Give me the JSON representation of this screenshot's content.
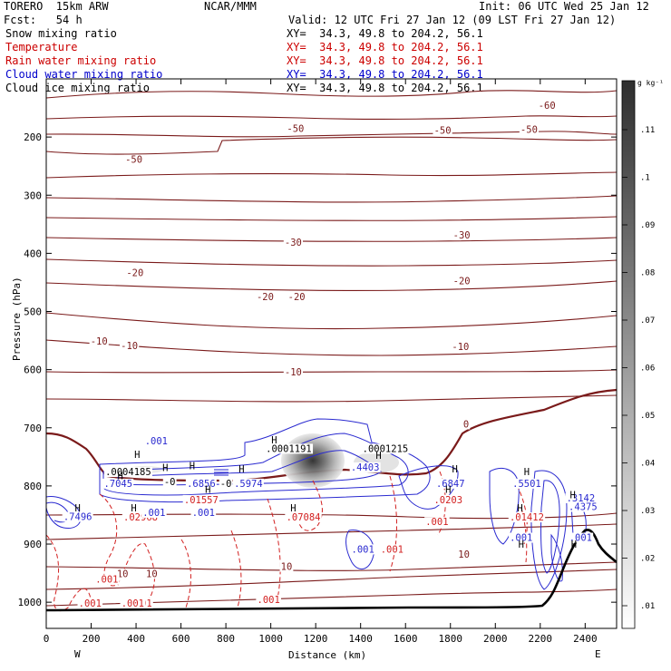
{
  "header": {
    "model": "TORERO  15km ARW",
    "center": "NCAR/MMM",
    "init": "Init: 06 UTC Wed 25 Jan 12",
    "fcst": "Fcst:   54 h",
    "valid": "Valid: 12 UTC Fri 27 Jan 12 (09 LST Fri 27 Jan 12)"
  },
  "fields": [
    {
      "label": "Snow mixing ratio",
      "xy": "XY=  34.3, 49.8 to 204.2, 56.1",
      "color": "#000000"
    },
    {
      "label": "Temperature",
      "xy": "XY=  34.3, 49.8 to 204.2, 56.1",
      "color": "#cc0000"
    },
    {
      "label": "Rain water mixing ratio",
      "xy": "XY=  34.3, 49.8 to 204.2, 56.1",
      "color": "#cc0000"
    },
    {
      "label": "Cloud water mixing ratio",
      "xy": "XY=  34.3, 49.8 to 204.2, 56.1",
      "color": "#0000cc"
    },
    {
      "label": "Cloud ice mixing ratio",
      "xy": "XY=  34.3, 49.8 to 204.2, 56.1",
      "color": "#000000"
    }
  ],
  "colors": {
    "temperature": "#7a1a1a",
    "zero_isotherm": "#7a1a1a",
    "rain": "#d22020",
    "cloud_water": "#2a2ad0",
    "terrain": "#000000",
    "snow_shading": "#444444"
  },
  "chart_data": {
    "type": "cross-section",
    "xlabel": "Distance (km)",
    "ylabel": "Pressure (hPa)",
    "x_ticks": [
      0,
      200,
      400,
      600,
      800,
      1000,
      1200,
      1400,
      1600,
      1800,
      2000,
      2200,
      2400
    ],
    "y_ticks": [
      200,
      300,
      400,
      500,
      600,
      700,
      800,
      900,
      1000
    ],
    "xlim": [
      0,
      2540
    ],
    "ylim": [
      1045,
      100
    ],
    "endpoints": {
      "left": "W",
      "right": "E"
    },
    "colorbar": {
      "unit": "g kg⁻¹",
      "ticks": [
        ".01",
        ".02",
        ".03",
        ".04",
        ".05",
        ".06",
        ".07",
        ".08",
        ".09",
        ".1",
        ".11"
      ]
    },
    "temperature_labels": [
      {
        "text": "-60",
        "x": 2230,
        "p": 150
      },
      {
        "text": "-50",
        "x": 1110,
        "p": 190
      },
      {
        "text": "-50",
        "x": 1765,
        "p": 193
      },
      {
        "text": "-50",
        "x": 2150,
        "p": 191
      },
      {
        "text": "-50",
        "x": 390,
        "p": 243
      },
      {
        "text": "-30",
        "x": 1100,
        "p": 385
      },
      {
        "text": "-30",
        "x": 1850,
        "p": 373
      },
      {
        "text": "-20",
        "x": 395,
        "p": 438
      },
      {
        "text": "-20",
        "x": 975,
        "p": 479
      },
      {
        "text": "-20",
        "x": 1115,
        "p": 479
      },
      {
        "text": "-20",
        "x": 1850,
        "p": 452
      },
      {
        "text": "-10",
        "x": 235,
        "p": 555
      },
      {
        "text": "-10",
        "x": 370,
        "p": 563
      },
      {
        "text": "-10",
        "x": 1100,
        "p": 608
      },
      {
        "text": "-10",
        "x": 1845,
        "p": 565
      },
      {
        "text": "0",
        "x": 1870,
        "p": 698
      },
      {
        "text": "10",
        "x": 340,
        "p": 955
      },
      {
        "text": "10",
        "x": 470,
        "p": 955
      },
      {
        "text": "10",
        "x": 1070,
        "p": 943
      },
      {
        "text": "10",
        "x": 1860,
        "p": 922
      }
    ],
    "rain_labels": [
      {
        "text": ".01557",
        "x": 690,
        "p": 828
      },
      {
        "text": ".02968",
        "x": 420,
        "p": 858
      },
      {
        "text": ".07084",
        "x": 1145,
        "p": 858
      },
      {
        "text": ".0203",
        "x": 1790,
        "p": 828
      },
      {
        "text": ".01412",
        "x": 2140,
        "p": 858
      },
      {
        "text": ".001",
        "x": 1740,
        "p": 866
      },
      {
        "text": ".001",
        "x": 1540,
        "p": 913
      },
      {
        "text": ".001",
        "x": 270,
        "p": 965
      },
      {
        "text": ".001",
        "x": 195,
        "p": 1006
      },
      {
        "text": ".001",
        "x": 420,
        "p": 1006
      },
      {
        "text": ".001",
        "x": 990,
        "p": 1000
      },
      {
        "text": ".001",
        "x": 385,
        "p": 1006
      }
    ],
    "cloud_labels": [
      {
        "text": ".001",
        "x": 490,
        "p": 727
      },
      {
        "text": ".001",
        "x": 1410,
        "p": 913
      },
      {
        "text": ".001",
        "x": 480,
        "p": 850
      },
      {
        "text": ".001",
        "x": 700,
        "p": 850
      },
      {
        "text": ".7496",
        "x": 140,
        "p": 857
      },
      {
        "text": ".7045",
        "x": 320,
        "p": 800
      },
      {
        "text": ".6856",
        "x": 690,
        "p": 800
      },
      {
        "text": ".5974",
        "x": 900,
        "p": 800
      },
      {
        "text": ".4403",
        "x": 1420,
        "p": 772
      },
      {
        "text": ".6847",
        "x": 1800,
        "p": 800
      },
      {
        "text": ".5501",
        "x": 2140,
        "p": 800
      },
      {
        "text": ".3142",
        "x": 2380,
        "p": 825
      },
      {
        "text": ".4375",
        "x": 2390,
        "p": 840
      },
      {
        "text": ".001",
        "x": 2115,
        "p": 893
      },
      {
        "text": ".001",
        "x": 2380,
        "p": 893
      }
    ],
    "h_labels": [
      {
        "text": "H",
        "x": 405,
        "p": 750
      },
      {
        "text": "H",
        "x": 1015,
        "p": 725
      },
      {
        "text": "H",
        "x": 1480,
        "p": 752
      },
      {
        "text": "H",
        "x": 140,
        "p": 842
      },
      {
        "text": "H",
        "x": 330,
        "p": 787
      },
      {
        "text": "H",
        "x": 530,
        "p": 773
      },
      {
        "text": "H",
        "x": 650,
        "p": 770
      },
      {
        "text": "H",
        "x": 870,
        "p": 775
      },
      {
        "text": "H",
        "x": 1820,
        "p": 775
      },
      {
        "text": "H",
        "x": 2140,
        "p": 780
      },
      {
        "text": "H",
        "x": 2345,
        "p": 820
      },
      {
        "text": "H",
        "x": 390,
        "p": 842
      },
      {
        "text": "H",
        "x": 720,
        "p": 810
      },
      {
        "text": "H",
        "x": 1100,
        "p": 842
      },
      {
        "text": "H",
        "x": 1790,
        "p": 810
      },
      {
        "text": "H",
        "x": 2110,
        "p": 842
      },
      {
        "text": "H",
        "x": 2350,
        "p": 905
      },
      {
        "text": "H",
        "x": 2115,
        "p": 905
      }
    ],
    "snow_labels": [
      {
        "text": ".0001191",
        "x": 1080,
        "p": 740
      },
      {
        "text": ".0001215",
        "x": 1510,
        "p": 740
      },
      {
        "text": ".0004185",
        "x": 365,
        "p": 780
      },
      {
        "text": "-0",
        "x": 550,
        "p": 797
      },
      {
        "text": "-0",
        "x": 800,
        "p": 800
      }
    ],
    "note": "Values are approximate, read from the rendered figure."
  }
}
